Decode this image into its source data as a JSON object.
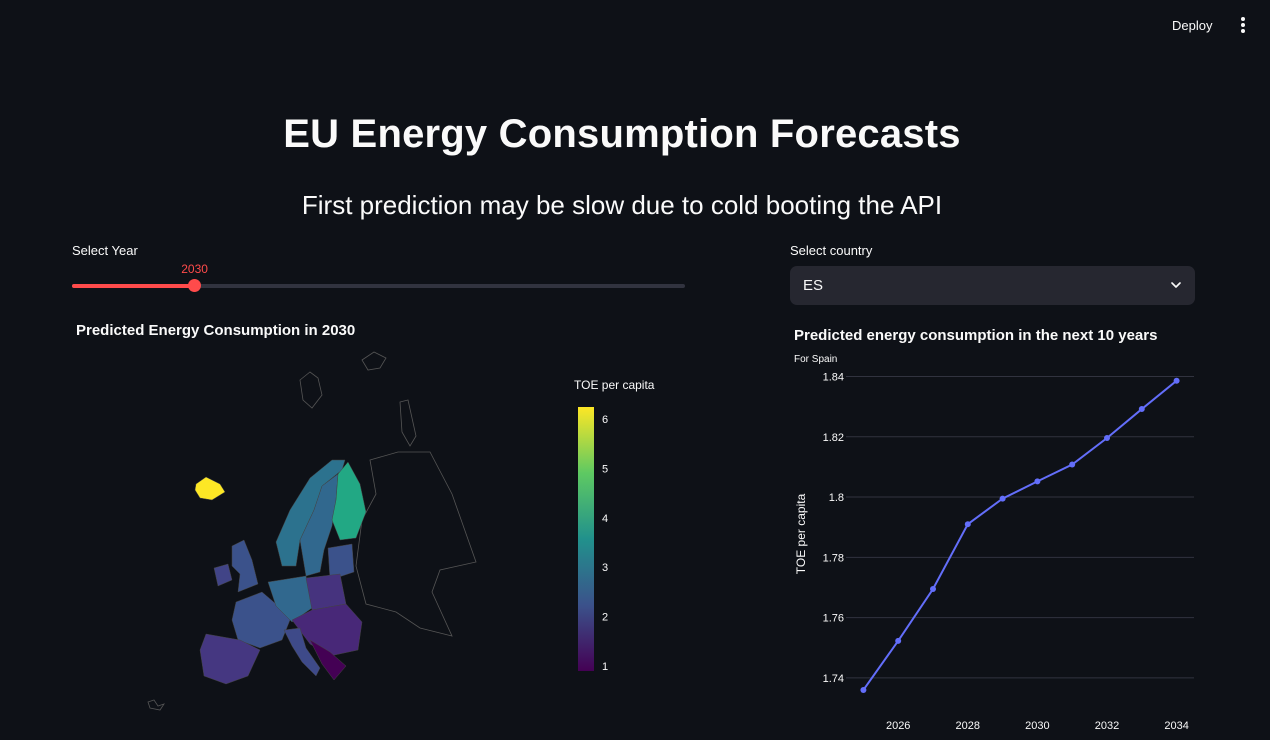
{
  "header": {
    "deploy_label": "Deploy",
    "menu_icon": "vertical-ellipsis-icon"
  },
  "page": {
    "title": "EU Energy Consumption Forecasts",
    "subtitle": "First prediction may be slow due to cold booting the API"
  },
  "year_slider": {
    "label": "Select Year",
    "value": 2030,
    "value_label": "2030",
    "fraction": 0.2,
    "accent": "#ff4b4b"
  },
  "country_select": {
    "label": "Select country",
    "value": "ES",
    "icon": "chevron-down-icon"
  },
  "map": {
    "title": "Predicted Energy Consumption in 2030",
    "colorbar_title": "TOE per capita",
    "colorbar_ticks": [
      "6",
      "5",
      "4",
      "3",
      "2",
      "1"
    ],
    "colorscale": [
      "#440154",
      "#3b528b",
      "#21918c",
      "#5ec962",
      "#fde725"
    ]
  },
  "line_chart": {
    "title": "Predicted energy consumption in the next 10 years",
    "subtitle": "For Spain",
    "ylabel": "TOE per capita",
    "y_tick_labels": [
      "1.84",
      "1.82",
      "1.8",
      "1.78",
      "1.76",
      "1.74"
    ],
    "x_tick_labels": [
      "2026",
      "2028",
      "2030",
      "2032",
      "2034"
    ],
    "line_color": "#636efa"
  },
  "chart_data": {
    "type": "line",
    "title": "Predicted energy consumption in the next 10 years",
    "subtitle": "For Spain",
    "xlabel": "",
    "ylabel": "TOE per capita",
    "x": [
      2025,
      2026,
      2027,
      2028,
      2029,
      2030,
      2031,
      2032,
      2033,
      2034
    ],
    "values": [
      1.736,
      1.7523,
      1.7695,
      1.791,
      1.7995,
      1.8052,
      1.8108,
      1.8196,
      1.8292,
      1.8386
    ],
    "xlim": [
      2024.5,
      2034.5
    ],
    "ylim": [
      1.734,
      1.8395
    ],
    "grid": true
  }
}
